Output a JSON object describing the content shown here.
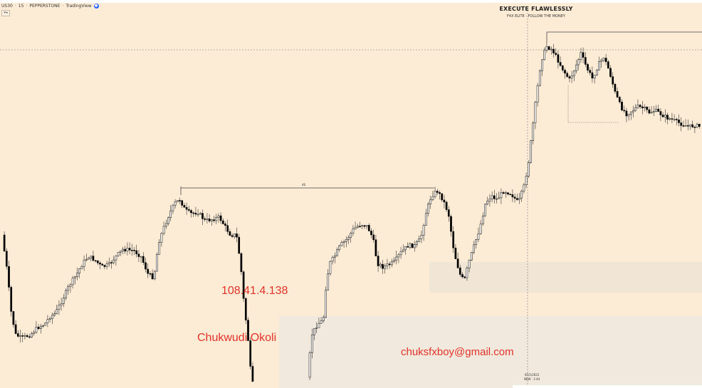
{
  "header": {
    "symbol": "US30",
    "timeframe": "15",
    "broker": "PEPPERSTONE",
    "source": "TradingView",
    "live_icon": "tv-logo-icon",
    "collapse_icon": "collapse-arrow-icon"
  },
  "branding": {
    "title": "EXECUTE FLAWLESSLY",
    "subtitle": "F4X ELITE · FOLLOW THE MONEY"
  },
  "watermarks": {
    "ip": "108.41.4.138",
    "name": "Chukwudi Okoli",
    "email": "chuksfxboy@gmail.com"
  },
  "chart": {
    "date_label": "05/1/2022",
    "time_label": "NEW · 1:44",
    "measure_label": "46",
    "colors": {
      "background": "#fcecd5",
      "bull": "#ffffff",
      "bear": "#000000",
      "wick": "#333333",
      "watermark": "#e0322a"
    }
  }
}
